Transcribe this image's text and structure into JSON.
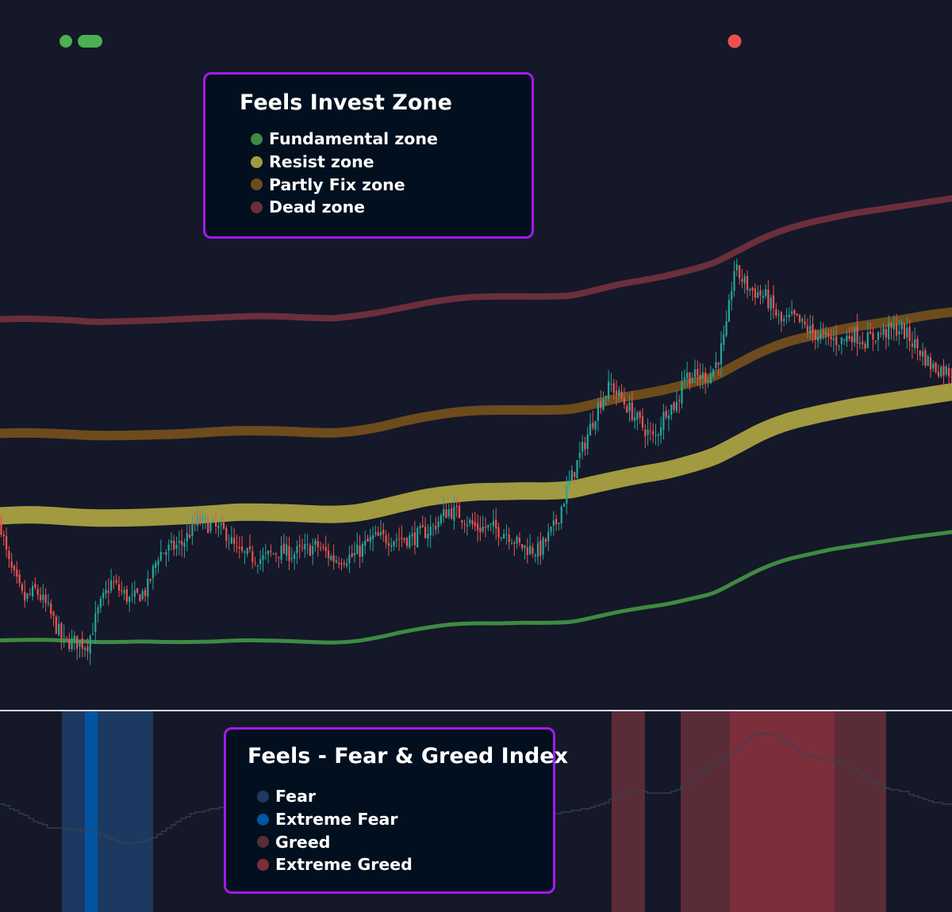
{
  "chart_data": [
    {
      "type": "line",
      "title": "Feels Invest Zone",
      "x": [
        0,
        30,
        60,
        90,
        120,
        150,
        180,
        210,
        240,
        270,
        300,
        330,
        360,
        390,
        420,
        450,
        480,
        510,
        540,
        570,
        600,
        630,
        660,
        690,
        720,
        750,
        780,
        810,
        840,
        870,
        900,
        930,
        960,
        990,
        1020,
        1050,
        1080,
        1110,
        1140,
        1170,
        1200
      ],
      "series": [
        {
          "name": "Fundamental zone",
          "color": "#3f8a43",
          "width": 5,
          "values": [
            0.8,
            0.9,
            0.9,
            0.7,
            0.5,
            0.5,
            0.6,
            0.5,
            0.5,
            0.6,
            0.8,
            0.8,
            0.7,
            0.5,
            0.4,
            0.7,
            1.5,
            2.5,
            3.3,
            3.9,
            4.1,
            4.1,
            4.2,
            4.2,
            4.4,
            5.3,
            6.3,
            7.1,
            7.8,
            8.8,
            10.0,
            12.3,
            14.6,
            16.3,
            17.4,
            18.4,
            19.1,
            19.8,
            20.5,
            21.1,
            21.7
          ]
        },
        {
          "name": "Resist zone",
          "color": "#a29a40",
          "width": 22,
          "values": [
            24.8,
            25.0,
            24.9,
            24.6,
            24.4,
            24.4,
            24.5,
            24.7,
            24.9,
            25.2,
            25.5,
            25.5,
            25.4,
            25.2,
            25.1,
            25.4,
            26.3,
            27.4,
            28.4,
            29.0,
            29.4,
            29.5,
            29.6,
            29.6,
            29.9,
            30.9,
            31.9,
            32.8,
            33.6,
            34.8,
            36.3,
            38.6,
            41.0,
            42.8,
            44.0,
            45.0,
            45.9,
            46.6,
            47.3,
            48.0,
            48.7
          ]
        },
        {
          "name": "Partly Fix zone",
          "color": "#6d4b1c",
          "width": 12,
          "values": [
            40.7,
            40.8,
            40.7,
            40.5,
            40.3,
            40.3,
            40.4,
            40.5,
            40.7,
            41.0,
            41.2,
            41.2,
            41.1,
            40.9,
            40.8,
            41.2,
            42.0,
            43.1,
            44.0,
            44.7,
            45.1,
            45.2,
            45.2,
            45.2,
            45.4,
            46.4,
            47.5,
            48.3,
            49.2,
            50.4,
            51.7,
            54.1,
            56.4,
            58.2,
            59.4,
            60.4,
            61.3,
            62.0,
            62.7,
            63.5,
            64.1
          ]
        },
        {
          "name": "Dead zone",
          "color": "#6b2f3c",
          "width": 8,
          "values": [
            62.7,
            62.8,
            62.7,
            62.5,
            62.2,
            62.3,
            62.4,
            62.6,
            62.8,
            63.0,
            63.2,
            63.3,
            63.2,
            63.0,
            62.9,
            63.4,
            64.1,
            65.0,
            65.9,
            66.6,
            67.0,
            67.1,
            67.1,
            67.1,
            67.3,
            68.3,
            69.4,
            70.2,
            71.1,
            72.2,
            73.6,
            75.9,
            78.2,
            80.0,
            81.3,
            82.3,
            83.2,
            83.9,
            84.6,
            85.3,
            86.0
          ]
        }
      ],
      "price": {
        "up_color": "#26a69a",
        "down_color": "#ef5350",
        "candle_step": 3.3,
        "seed": 7,
        "path": [
          [
            0,
            24.0
          ],
          [
            10,
            16.0
          ],
          [
            30,
            8.5
          ],
          [
            45,
            10.5
          ],
          [
            60,
            7.0
          ],
          [
            80,
            0.5
          ],
          [
            95,
            0.5
          ],
          [
            110,
            0.0
          ],
          [
            125,
            7.0
          ],
          [
            140,
            12.0
          ],
          [
            165,
            8.5
          ],
          [
            185,
            10.5
          ],
          [
            200,
            17.5
          ],
          [
            230,
            19.5
          ],
          [
            250,
            24.0
          ],
          [
            270,
            22.5
          ],
          [
            285,
            21.5
          ],
          [
            300,
            17.5
          ],
          [
            330,
            16.5
          ],
          [
            350,
            18.0
          ],
          [
            370,
            17.5
          ],
          [
            400,
            19.0
          ],
          [
            420,
            16.5
          ],
          [
            445,
            17.0
          ],
          [
            470,
            20.5
          ],
          [
            500,
            20.5
          ],
          [
            520,
            20.5
          ],
          [
            545,
            22.5
          ],
          [
            565,
            26.0
          ],
          [
            580,
            25.0
          ],
          [
            600,
            22.5
          ],
          [
            620,
            22.5
          ],
          [
            640,
            21.5
          ],
          [
            655,
            19.0
          ],
          [
            680,
            18.0
          ],
          [
            700,
            23.0
          ],
          [
            715,
            30.0
          ],
          [
            735,
            38.0
          ],
          [
            755,
            46.5
          ],
          [
            770,
            50.0
          ],
          [
            790,
            46.0
          ],
          [
            810,
            42.0
          ],
          [
            825,
            39.5
          ],
          [
            840,
            45.5
          ],
          [
            855,
            46.5
          ],
          [
            860,
            52.0
          ],
          [
            880,
            51.5
          ],
          [
            895,
            52.0
          ],
          [
            905,
            55.0
          ],
          [
            915,
            60.0
          ],
          [
            925,
            72.5
          ],
          [
            945,
            68.5
          ],
          [
            965,
            67.0
          ],
          [
            985,
            62.0
          ],
          [
            1000,
            63.0
          ],
          [
            1020,
            60.5
          ],
          [
            1040,
            59.0
          ],
          [
            1060,
            58.5
          ],
          [
            1075,
            60.0
          ],
          [
            1090,
            58.5
          ],
          [
            1110,
            60.0
          ],
          [
            1135,
            61.0
          ],
          [
            1155,
            57.5
          ],
          [
            1175,
            53.5
          ],
          [
            1200,
            52.5
          ]
        ]
      },
      "ylim": [
        -5,
        100
      ]
    },
    {
      "type": "area",
      "title": "Feels - Fear & Greed Index",
      "regions": [
        {
          "name": "Fear",
          "color": "#1c3a61",
          "spans": [
            [
              78,
              107
            ],
            [
              123,
              193
            ]
          ]
        },
        {
          "name": "Extreme Fear",
          "color": "#0055a0",
          "spans": [
            [
              107,
              123
            ]
          ]
        },
        {
          "name": "Greed",
          "color": "#5a2c37",
          "spans": [
            [
              771,
              813
            ],
            [
              858,
              920
            ],
            [
              1052,
              1117
            ]
          ]
        },
        {
          "name": "Extreme Greed",
          "color": "#7c2f3b",
          "spans": [
            [
              920,
              1052
            ]
          ]
        }
      ],
      "index_line": {
        "color": "#3a4054",
        "x": [
          0,
          20,
          40,
          60,
          80,
          100,
          120,
          140,
          160,
          180,
          200,
          220,
          240,
          260,
          280,
          300,
          320,
          340,
          360,
          380,
          400,
          420,
          440,
          460,
          480,
          500,
          520,
          540,
          560,
          580,
          600,
          620,
          640,
          660,
          680,
          700,
          720,
          740,
          760,
          780,
          800,
          820,
          840,
          860,
          880,
          900,
          920,
          940,
          960,
          980,
          1000,
          1020,
          1040,
          1060,
          1080,
          1100,
          1120,
          1140,
          1160,
          1180,
          1200
        ],
        "values": [
          47,
          42,
          35,
          30,
          29,
          28,
          27,
          21,
          18,
          20,
          25,
          34,
          40,
          43,
          45,
          44,
          43,
          44,
          45,
          46,
          46,
          47,
          47,
          48,
          49,
          48,
          48,
          47,
          48,
          48,
          46,
          45,
          44,
          44,
          42,
          40,
          42,
          44,
          48,
          54,
          58,
          55,
          55,
          60,
          70,
          78,
          84,
          95,
          99,
          97,
          88,
          82,
          80,
          78,
          71,
          63,
          58,
          56,
          51,
          48,
          47
        ]
      },
      "xlim": [
        0,
        1200
      ],
      "ylim": [
        0,
        100
      ]
    }
  ],
  "indicators": {
    "left": [
      {
        "color": "#4caf50",
        "shape": "dot"
      },
      {
        "color": "#4caf50",
        "shape": "pill"
      }
    ],
    "right": [
      {
        "color": "#f05050",
        "shape": "dot"
      }
    ]
  }
}
